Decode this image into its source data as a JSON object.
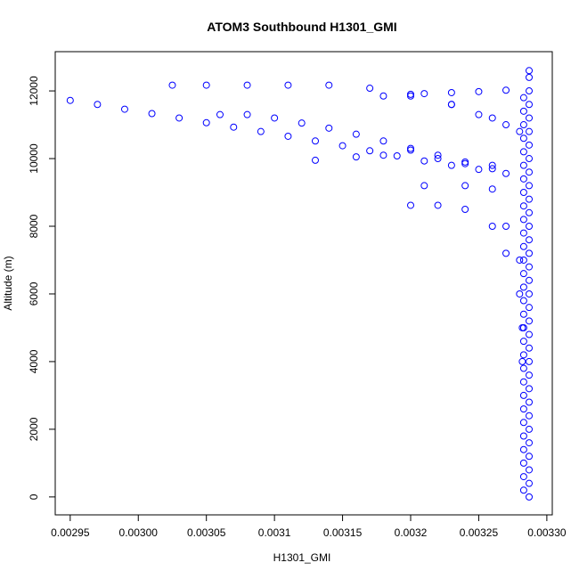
{
  "chart_data": {
    "type": "scatter",
    "title": "ATOM3 Southbound H1301_GMI",
    "x_label": "H1301_GMI",
    "y_label": "Altitude (m)",
    "color": "#0000ff",
    "xlim": [
      0.002939,
      0.003304
    ],
    "ylim": [
      -530,
      13160
    ],
    "xticks": [
      0.00295,
      {
        "value": 0.003,
        "label": "0.00300"
      },
      0.00305,
      0.0031,
      0.00315,
      0.0032,
      0.00325,
      {
        "value": 0.0033,
        "label": "0.00330"
      }
    ],
    "yticks": [
      0,
      2000,
      4000,
      6000,
      8000,
      10000,
      12000
    ],
    "x": [
      0.00295,
      0.00297,
      0.00299,
      0.00301,
      0.00303,
      0.00305,
      0.00307,
      0.00309,
      0.00311,
      0.00313,
      0.00315,
      0.00317,
      0.00319,
      0.00321,
      0.00323,
      0.00325,
      0.00327,
      0.003025,
      0.00305,
      0.00308,
      0.00311,
      0.00314,
      0.00317,
      0.0032,
      0.00323,
      0.00326,
      0.00328,
      0.00306,
      0.00308,
      0.0031,
      0.00312,
      0.00314,
      0.00316,
      0.00318,
      0.0032,
      0.00322,
      0.00324,
      0.00326,
      0.00318,
      0.0032,
      0.00321,
      0.00323,
      0.00325,
      0.00327,
      0.00323,
      0.00325,
      0.00327,
      0.00313,
      0.00316,
      0.00318,
      0.0032,
      0.00322,
      0.00324,
      0.00326,
      0.0032,
      0.00322,
      0.00324,
      0.00326,
      0.00327,
      0.00328,
      0.003282,
      0.003282,
      0.00321,
      0.00324,
      0.00326,
      0.00327,
      0.00328,
      0.003287,
      0.003287,
      0.003287,
      0.003287,
      0.003287,
      0.003287,
      0.003287,
      0.003287,
      0.003287,
      0.003287,
      0.003287,
      0.003287,
      0.003287,
      0.003287,
      0.003287,
      0.003287,
      0.003287,
      0.003287,
      0.003287,
      0.003287,
      0.003287,
      0.003287,
      0.003287,
      0.003287,
      0.003287,
      0.003287,
      0.003287,
      0.003287,
      0.003287,
      0.003287,
      0.003287,
      0.003287,
      0.003287,
      0.003283,
      0.003283,
      0.003283,
      0.003283,
      0.003283,
      0.003283,
      0.003283,
      0.003283,
      0.003283,
      0.003283,
      0.003283,
      0.003283,
      0.003283,
      0.003283,
      0.003283,
      0.003283,
      0.003283,
      0.003283,
      0.003283,
      0.003283,
      0.003283,
      0.003283,
      0.003283,
      0.003283,
      0.003283,
      0.003283,
      0.003283,
      0.003283,
      0.003283,
      0.003283
    ],
    "y": [
      11720,
      11600,
      11460,
      11330,
      11200,
      11060,
      10930,
      10800,
      10660,
      10520,
      10380,
      10230,
      10080,
      9930,
      9800,
      9680,
      9560,
      12170,
      12170,
      12170,
      12170,
      12170,
      12080,
      11900,
      11600,
      11200,
      10800,
      11300,
      11300,
      11200,
      11050,
      10900,
      10720,
      10520,
      10300,
      10100,
      9900,
      9700,
      11850,
      11850,
      11920,
      11950,
      11980,
      12020,
      11600,
      11300,
      11000,
      9950,
      10050,
      10100,
      10250,
      10000,
      9850,
      9800,
      8620,
      8620,
      8500,
      8000,
      7200,
      6000,
      5000,
      4000,
      9200,
      9200,
      9100,
      8000,
      7000,
      0,
      400,
      800,
      1200,
      1600,
      2000,
      2400,
      2800,
      3200,
      3600,
      4000,
      4400,
      4800,
      5200,
      5600,
      6000,
      6400,
      6800,
      7200,
      7600,
      8000,
      8400,
      8800,
      9200,
      9600,
      10000,
      10400,
      10800,
      11200,
      11600,
      12000,
      12400,
      12600,
      200,
      600,
      1000,
      1400,
      1800,
      2200,
      2600,
      3000,
      3400,
      3800,
      4200,
      4600,
      5000,
      5400,
      5800,
      6200,
      6600,
      7000,
      7400,
      7800,
      8200,
      8600,
      9000,
      9400,
      9800,
      10200,
      10600,
      11000,
      11400,
      11800
    ]
  }
}
